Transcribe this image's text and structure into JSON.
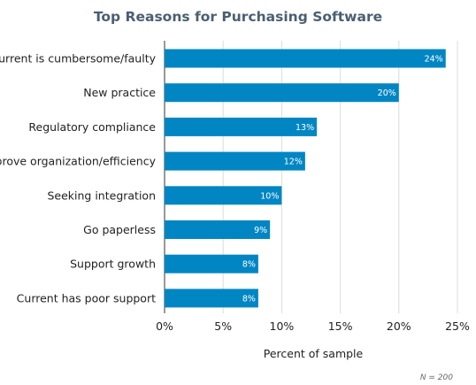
{
  "chart_data": {
    "type": "bar",
    "orientation": "horizontal",
    "title": "Top Reasons for Purchasing Software",
    "xlabel": "Percent of sample",
    "ylabel": "",
    "categories": [
      "Current is cumbersome/faulty",
      "New practice",
      "Regulatory compliance",
      "Improve organization/efficiency",
      "Seeking integration",
      "Go paperless",
      "Support growth",
      "Current has poor support"
    ],
    "values": [
      24,
      20,
      13,
      12,
      10,
      9,
      8,
      8
    ],
    "value_labels": [
      "24%",
      "20%",
      "13%",
      "12%",
      "10%",
      "9%",
      "8%",
      "8%"
    ],
    "xlim": [
      0,
      25
    ],
    "xticks": [
      0,
      5,
      10,
      15,
      20,
      25
    ],
    "xtick_labels": [
      "0%",
      "5%",
      "10%",
      "15%",
      "20%",
      "25%"
    ],
    "grid": "vertical",
    "bar_color": "#0286c3",
    "note": "N = 200"
  }
}
